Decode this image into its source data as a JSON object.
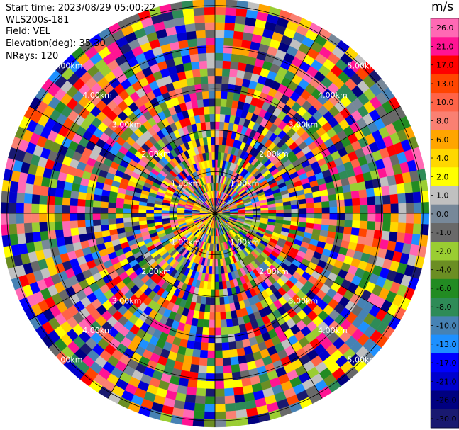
{
  "header": {
    "start_time": "Start time: 2023/08/29 05:00:22",
    "instrument": "WLS200s-181",
    "field": "Field: VEL",
    "elevation": "Elevation(deg): 35.30",
    "nrays": "NRays: 120"
  },
  "chart_data": {
    "type": "heatmap",
    "subtype": "polar PPI velocity scan",
    "field": "VEL",
    "n_rays": 120,
    "range_ring_labels": [
      "1.00km",
      "2.00km",
      "3.00km",
      "4.00km",
      "5.00km"
    ],
    "colorbar": {
      "unit": "m/s",
      "tick_labels": [
        "26.0",
        "21.0",
        "17.0",
        "13.0",
        "10.0",
        "8.0",
        "6.0",
        "4.0",
        "2.0",
        "1.0",
        "0.0",
        "-1.0",
        "-2.0",
        "-4.0",
        "-6.0",
        "-8.0",
        "-10.0",
        "-13.0",
        "-17.0",
        "-21.0",
        "-26.0",
        "-30.0"
      ],
      "colors": [
        "#ff69b4",
        "#ff1493",
        "#ff0000",
        "#ff4500",
        "#ff6347",
        "#fa8072",
        "#ffa500",
        "#ffd700",
        "#ffff00",
        "#c0c0c0",
        "#778899",
        "#696969",
        "#9acd32",
        "#6b8e23",
        "#228b22",
        "#2e8b57",
        "#4682b4",
        "#1e90ff",
        "#0000ff",
        "#0000cd",
        "#000080",
        "#191970"
      ]
    }
  }
}
